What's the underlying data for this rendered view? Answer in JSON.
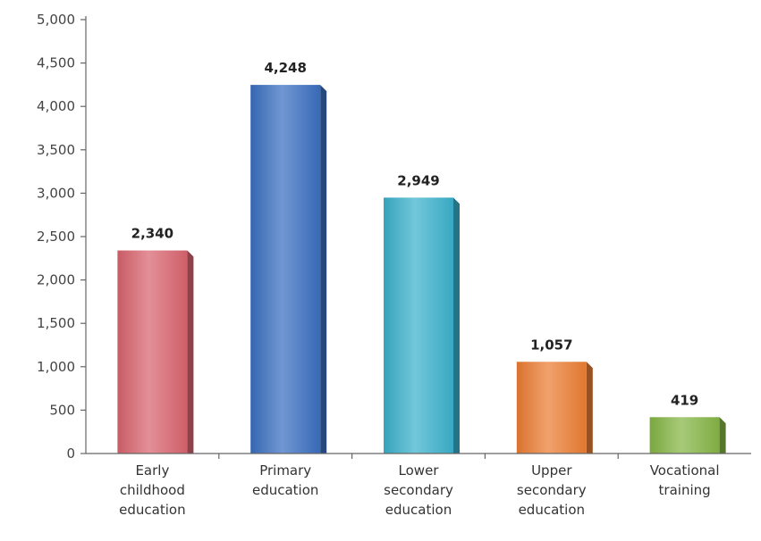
{
  "chart_data": {
    "type": "bar",
    "title": "",
    "xlabel": "",
    "ylabel": "",
    "ylim": [
      0,
      5000
    ],
    "yticks": [
      0,
      500,
      1000,
      1500,
      2000,
      2500,
      3000,
      3500,
      4000,
      4500,
      5000
    ],
    "ytick_labels": [
      "0",
      "500",
      "1,000",
      "1,500",
      "2,000",
      "2,500",
      "3,000",
      "3,500",
      "4,000",
      "4,500",
      "5,000"
    ],
    "grid": false,
    "legend": "none",
    "categories": [
      [
        "Early",
        "childhood",
        "education"
      ],
      [
        "Primary",
        "education"
      ],
      [
        "Lower",
        "secondary",
        "education"
      ],
      [
        "Upper",
        "secondary",
        "education"
      ],
      [
        "Vocational",
        "training"
      ]
    ],
    "values": [
      2340,
      4248,
      2949,
      1057,
      419
    ],
    "value_labels": [
      "2,340",
      "4,248",
      "2,949",
      "1,057",
      "419"
    ],
    "colors": [
      "#d9646e",
      "#3a6fc0",
      "#3bb1cc",
      "#ec7d33",
      "#85b545"
    ]
  }
}
